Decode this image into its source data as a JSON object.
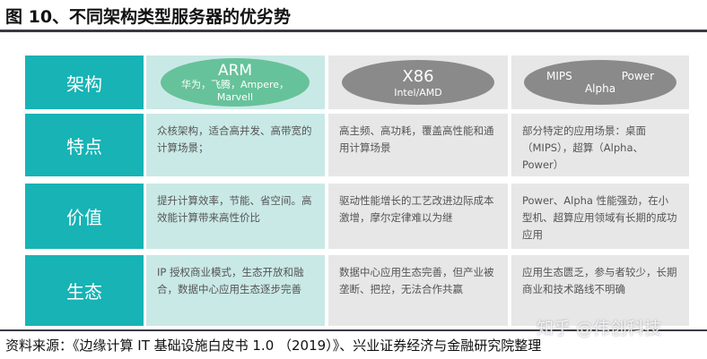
{
  "title": "图 10、不同架构类型服务器的优劣势",
  "colors": {
    "label": "#17b3b5",
    "arm_bg": "#c9e9e6",
    "other_bg": "#e7e7e7",
    "arm_ellipse": "#66c29a",
    "grey_ellipse": "#8a8a8a"
  },
  "header": {
    "label": "架构",
    "arm": {
      "name": "ARM",
      "vendors": "华为，飞腾，Ampere，",
      "vendors2": "Marvell"
    },
    "x86": {
      "name": "X86",
      "vendors": "Intel/AMD"
    },
    "other": {
      "a": "MIPS",
      "b": "Power",
      "c": "Alpha"
    }
  },
  "rows": [
    {
      "label": "特点",
      "arm": "众核架构，适合高并发、高带宽的计算场景；",
      "x86": "高主频、高功耗，覆盖高性能和通用计算场景",
      "other": "部分特定的应用场景：桌面（MIPS），超算（Alpha、Power）"
    },
    {
      "label": "价值",
      "arm": "提升计算效率，节能、省空间。高效能计算带来高性价比",
      "x86": "驱动性能增长的工艺改进边际成本激增，摩尔定律难以为继",
      "other": "Power、Alpha 性能强劲，在小型机、超算应用领域有长期的成功应用"
    },
    {
      "label": "生态",
      "arm": "IP 授权商业模式，生态开放和融合，数据中心应用生态逐步完善",
      "x86": "数据中心应用生态完善，但产业被垄断、把控，无法合作共赢",
      "other": "应用生态匮乏，参与者较少，长期商业和技术路线不明确"
    }
  ],
  "source": "资料来源：《边缘计算 IT 基础设施白皮书 1.0 （2019）》、兴业证券经济与金融研究院整理",
  "watermark": "知乎 @伟创科技"
}
